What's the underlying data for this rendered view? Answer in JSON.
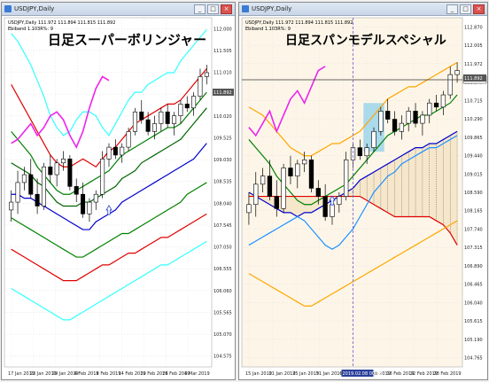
{
  "windows": [
    {
      "title": "USDJPY,Daily",
      "info1": "USDJPY,Daily  111.972 111.894 111.815 111.892",
      "info2": "Ebiband 1.103R%: 9",
      "overlay_title": "日足スーパーボリンジャー",
      "controls": {
        "minimize": "_",
        "maximize": "□",
        "close": "×"
      },
      "price_ticks": [
        "112.000",
        "111.505",
        "111.010",
        "110.515",
        "110.020",
        "109.525",
        "109.030",
        "108.535",
        "108.040",
        "107.545",
        "107.050",
        "106.555",
        "106.060",
        "105.565",
        "105.070",
        "104.575"
      ],
      "current_price": "111.892",
      "date_ticks": [
        "17 Jan 2019",
        "23 Jan 2019",
        "29 Jan 2019",
        "4 Feb 2019",
        "8 Feb 2019",
        "14 Feb 2019",
        "20 Feb 2019",
        "26 Feb 2019",
        "4 Mar 2019"
      ]
    },
    {
      "title": "USDJPY,Daily",
      "info1": "USDJPY,Daily  111.972 111.894 111.815 111.892",
      "info2": "Ebiband 1.103R%: 9",
      "overlay_title": "日足スパンモデルスペシャル",
      "controls": {
        "minimize": "_",
        "maximize": "□",
        "close": "×"
      },
      "price_ticks": [
        "112.870",
        "112.005",
        "111.972",
        "111.140",
        "110.715",
        "110.290",
        "109.865",
        "109.440",
        "109.015",
        "108.590",
        "108.165",
        "107.740",
        "107.315",
        "106.890",
        "106.465",
        "106.040",
        "105.615",
        "105.190",
        "104.765"
      ],
      "current_price": "111.892",
      "hline_price": "111.972",
      "date_ticks": [
        "15 Jan 2019",
        "21 Jan 2019",
        "25 Jan 2019",
        "31 Jan 2019",
        "6 Feb 2019",
        "12 Feb 2019",
        "18 Feb 2019",
        "22 Feb 2019",
        "28 Feb 2019"
      ],
      "cursor_date": "2019.02.08 00:00"
    }
  ],
  "chart_data": [
    {
      "type": "candlestick",
      "title": "日足スーパーボリンジャー",
      "series_colors": {
        "sma": "#006400",
        "band1": "#0000cc",
        "band2": "#008000",
        "band3": "#e00000",
        "band4": "#33ffff",
        "lagging": "#ee22ee",
        "up_candle": "#ffffff",
        "down_candle": "#000000"
      },
      "ohlc": [
        [
          108.4,
          108.9,
          108.1,
          108.6
        ],
        [
          108.6,
          109.4,
          108.3,
          109.1
        ],
        [
          109.1,
          109.5,
          108.9,
          109.3
        ],
        [
          109.3,
          109.7,
          108.7,
          108.8
        ],
        [
          108.8,
          109.2,
          108.3,
          108.5
        ],
        [
          108.5,
          109.6,
          108.4,
          109.5
        ],
        [
          109.5,
          109.8,
          109.1,
          109.3
        ],
        [
          109.3,
          109.7,
          109.0,
          109.6
        ],
        [
          109.6,
          109.9,
          109.4,
          109.7
        ],
        [
          109.7,
          109.8,
          108.9,
          109.0
        ],
        [
          109.0,
          109.2,
          108.6,
          108.8
        ],
        [
          108.8,
          109.1,
          108.2,
          108.3
        ],
        [
          108.3,
          108.7,
          108.1,
          108.6
        ],
        [
          108.6,
          108.9,
          108.4,
          108.8
        ],
        [
          108.8,
          109.9,
          108.7,
          109.7
        ],
        [
          109.7,
          110.1,
          109.5,
          110.0
        ],
        [
          110.0,
          110.2,
          109.7,
          109.8
        ],
        [
          109.8,
          110.1,
          109.6,
          110.0
        ],
        [
          110.0,
          110.5,
          109.9,
          110.4
        ],
        [
          110.4,
          111.0,
          110.3,
          110.9
        ],
        [
          110.9,
          111.2,
          110.6,
          110.7
        ],
        [
          110.7,
          110.9,
          110.3,
          110.4
        ],
        [
          110.4,
          110.8,
          110.2,
          110.6
        ],
        [
          110.6,
          111.0,
          110.4,
          110.9
        ],
        [
          110.9,
          111.1,
          110.5,
          110.6
        ],
        [
          110.6,
          110.9,
          110.3,
          110.8
        ],
        [
          110.8,
          111.2,
          110.6,
          111.1
        ],
        [
          111.1,
          111.3,
          110.9,
          111.0
        ],
        [
          111.0,
          111.4,
          110.8,
          111.3
        ],
        [
          111.3,
          112.0,
          111.2,
          111.8
        ],
        [
          111.8,
          112.1,
          111.6,
          111.9
        ]
      ],
      "lines": {
        "band4_up": [
          112.9,
          112.7,
          112.4,
          112.1,
          111.7,
          111.3,
          110.8,
          110.5,
          110.3,
          110.4,
          110.7,
          110.9,
          110.9,
          110.8,
          110.5,
          110.3,
          110.6,
          110.9,
          111.2,
          111.4,
          111.4,
          111.6,
          111.7,
          111.8,
          111.9,
          111.9,
          112.2,
          112.4,
          112.6,
          112.8,
          113.0
        ],
        "band3_up": [
          111.6,
          111.3,
          111.0,
          110.7,
          110.4,
          110.1,
          109.8,
          109.6,
          109.5,
          109.5,
          109.6,
          109.7,
          109.6,
          109.5,
          109.7,
          109.9,
          110.0,
          110.2,
          110.4,
          110.6,
          110.7,
          110.8,
          110.9,
          111.0,
          111.1,
          111.1,
          111.2,
          111.4,
          111.6,
          111.8,
          112.0
        ],
        "band2_up": [
          110.4,
          110.2,
          110.0,
          109.8,
          109.5,
          109.3,
          109.1,
          108.9,
          108.8,
          108.8,
          108.9,
          109.0,
          109.1,
          109.2,
          109.3,
          109.4,
          109.6,
          109.8,
          109.9,
          110.0,
          110.1,
          110.2,
          110.3,
          110.4,
          110.5,
          110.5,
          110.6,
          110.8,
          111.0,
          111.2,
          111.4
        ],
        "sma": [
          109.6,
          109.5,
          109.4,
          109.3,
          109.1,
          109.0,
          108.8,
          108.6,
          108.5,
          108.5,
          108.5,
          108.6,
          108.6,
          108.7,
          108.8,
          108.9,
          109.0,
          109.2,
          109.3,
          109.4,
          109.6,
          109.7,
          109.8,
          109.9,
          110.0,
          110.1,
          110.2,
          110.4,
          110.6,
          110.8,
          111.0
        ],
        "band1_dn": [
          108.8,
          108.8,
          108.7,
          108.7,
          108.6,
          108.5,
          108.4,
          108.3,
          108.2,
          108.1,
          108.0,
          107.9,
          107.9,
          108.1,
          108.2,
          108.3,
          108.4,
          108.6,
          108.7,
          108.8,
          108.9,
          109.0,
          109.1,
          109.2,
          109.3,
          109.4,
          109.5,
          109.6,
          109.7,
          109.9,
          110.1
        ],
        "band2_dn": [
          108.2,
          108.1,
          108.0,
          107.9,
          107.8,
          107.7,
          107.6,
          107.5,
          107.4,
          107.3,
          107.2,
          107.2,
          107.3,
          107.4,
          107.5,
          107.6,
          107.7,
          107.8,
          107.8,
          107.9,
          108.0,
          108.1,
          108.2,
          108.3,
          108.4,
          108.5,
          108.6,
          108.8,
          108.9,
          109.0,
          109.1
        ],
        "band3_dn": [
          107.4,
          107.3,
          107.2,
          107.1,
          107.0,
          106.9,
          106.8,
          106.7,
          106.6,
          106.6,
          106.6,
          106.7,
          106.8,
          106.9,
          107.0,
          107.0,
          107.1,
          107.2,
          107.3,
          107.3,
          107.4,
          107.5,
          107.6,
          107.7,
          107.7,
          107.8,
          107.9,
          108.0,
          108.1,
          108.2,
          108.3
        ],
        "band4_dn": [
          106.4,
          106.3,
          106.2,
          106.1,
          106.0,
          105.9,
          105.8,
          105.7,
          105.6,
          105.6,
          105.7,
          105.8,
          105.9,
          106.0,
          106.1,
          106.2,
          106.3,
          106.4,
          106.5,
          106.6,
          106.7,
          106.8,
          106.9,
          107.0,
          107.0,
          107.1,
          107.2,
          107.3,
          107.4,
          107.5,
          107.6
        ]
      },
      "lagging_span": [
        [
          0,
          110.1
        ],
        [
          1,
          110.2
        ],
        [
          2,
          110.4
        ],
        [
          3,
          110.6
        ],
        [
          4,
          110.3
        ],
        [
          5,
          110.5
        ],
        [
          6,
          110.8
        ],
        [
          7,
          110.9
        ],
        [
          8,
          110.7
        ],
        [
          9,
          110.3
        ],
        [
          10,
          110.0
        ],
        [
          11,
          110.4
        ],
        [
          12,
          111.0
        ],
        [
          13,
          111.5
        ],
        [
          14,
          111.8
        ],
        [
          15,
          111.7
        ]
      ],
      "arrow": {
        "index": 15,
        "price": 108.4
      }
    },
    {
      "type": "candlestick",
      "title": "日足スパンモデルスペシャル",
      "series_colors": {
        "span_a": "#0000cc",
        "span_b": "#e00000",
        "upper_band": "#ffa500",
        "middle_green": "#008000",
        "lagging": "#ee22ee",
        "blue_line": "#1e90ff",
        "cloud": "#f5e6c8",
        "box": "#87ceeb"
      },
      "ohlc": [
        [
          108.4,
          108.9,
          108.1,
          108.6
        ],
        [
          108.6,
          109.4,
          108.3,
          109.1
        ],
        [
          109.1,
          109.5,
          108.9,
          109.3
        ],
        [
          109.3,
          109.7,
          108.7,
          108.8
        ],
        [
          108.8,
          109.2,
          108.3,
          108.5
        ],
        [
          108.5,
          109.6,
          108.4,
          109.5
        ],
        [
          109.5,
          109.8,
          109.1,
          109.3
        ],
        [
          109.3,
          109.7,
          109.0,
          109.6
        ],
        [
          109.6,
          109.9,
          109.4,
          109.7
        ],
        [
          109.7,
          109.8,
          108.9,
          109.0
        ],
        [
          109.0,
          109.2,
          108.6,
          108.8
        ],
        [
          108.8,
          109.1,
          108.2,
          108.3
        ],
        [
          108.3,
          108.7,
          108.1,
          108.6
        ],
        [
          108.6,
          108.9,
          108.4,
          108.8
        ],
        [
          108.8,
          109.9,
          108.7,
          109.7
        ],
        [
          109.7,
          110.1,
          109.5,
          110.0
        ],
        [
          110.0,
          110.2,
          109.7,
          109.8
        ],
        [
          109.8,
          110.1,
          109.6,
          110.0
        ],
        [
          110.0,
          110.5,
          109.9,
          110.4
        ],
        [
          110.4,
          111.0,
          110.3,
          110.9
        ],
        [
          110.9,
          111.2,
          110.6,
          110.7
        ],
        [
          110.7,
          110.9,
          110.3,
          110.4
        ],
        [
          110.4,
          110.8,
          110.2,
          110.6
        ],
        [
          110.6,
          111.0,
          110.4,
          110.9
        ],
        [
          110.9,
          111.1,
          110.5,
          110.6
        ],
        [
          110.6,
          110.9,
          110.3,
          110.8
        ],
        [
          110.8,
          111.2,
          110.6,
          111.1
        ],
        [
          111.1,
          111.3,
          110.9,
          111.0
        ],
        [
          111.0,
          111.4,
          110.8,
          111.3
        ],
        [
          111.3,
          112.0,
          111.2,
          111.8
        ],
        [
          111.8,
          112.1,
          111.6,
          111.9
        ]
      ],
      "lines": {
        "upper_band": [
          111.0,
          110.9,
          110.8,
          110.6,
          110.4,
          110.2,
          110.0,
          109.9,
          109.8,
          109.8,
          109.9,
          110.0,
          110.1,
          110.1,
          110.2,
          110.3,
          110.4,
          110.6,
          110.8,
          111.0,
          111.2,
          111.3,
          111.4,
          111.5,
          111.5,
          111.6,
          111.7,
          111.8,
          111.9,
          112.0,
          112.1
        ],
        "middle_green": [
          110.2,
          110.0,
          109.8,
          109.6,
          109.3,
          109.1,
          108.9,
          108.7,
          108.6,
          108.6,
          108.7,
          108.8,
          108.9,
          109.0,
          109.1,
          109.3,
          109.5,
          109.7,
          109.9,
          110.1,
          110.3,
          110.4,
          110.5,
          110.6,
          110.7,
          110.8,
          110.8,
          110.9,
          111.0,
          111.1,
          111.3
        ],
        "span_a": [
          108.9,
          108.8,
          108.7,
          108.6,
          108.5,
          108.4,
          108.4,
          108.3,
          108.4,
          108.4,
          108.5,
          108.6,
          108.7,
          108.8,
          108.9,
          109.0,
          109.2,
          109.3,
          109.4,
          109.5,
          109.6,
          109.7,
          109.8,
          109.9,
          110.0,
          110.0,
          110.1,
          110.1,
          110.2,
          110.3,
          110.4
        ],
        "span_b": [
          108.8,
          108.8,
          108.8,
          108.8,
          108.8,
          108.8,
          108.8,
          108.8,
          108.8,
          108.8,
          108.8,
          108.8,
          108.8,
          108.8,
          108.8,
          108.8,
          108.8,
          108.7,
          108.6,
          108.5,
          108.4,
          108.3,
          108.3,
          108.3,
          108.3,
          108.3,
          108.3,
          108.2,
          108.1,
          107.9,
          107.6
        ],
        "blue_line": [
          107.6,
          107.7,
          107.8,
          107.9,
          108.0,
          108.1,
          108.2,
          108.3,
          108.2,
          108.0,
          107.8,
          107.6,
          107.5,
          107.6,
          107.8,
          108.0,
          108.3,
          108.6,
          108.9,
          109.1,
          109.3,
          109.4,
          109.6,
          109.7,
          109.8,
          109.9,
          110.0,
          110.0,
          110.1,
          110.2,
          110.3
        ],
        "lower_band": [
          106.9,
          106.8,
          106.7,
          106.6,
          106.5,
          106.4,
          106.3,
          106.2,
          106.1,
          106.1,
          106.2,
          106.3,
          106.4,
          106.5,
          106.6,
          106.7,
          106.8,
          106.9,
          107.0,
          107.1,
          107.2,
          107.3,
          107.4,
          107.5,
          107.6,
          107.7,
          107.8,
          107.9,
          108.0,
          108.1,
          108.2
        ]
      },
      "lagging_span": [
        [
          0,
          110.5
        ],
        [
          1,
          110.3
        ],
        [
          2,
          110.6
        ],
        [
          3,
          110.9
        ],
        [
          4,
          110.4
        ],
        [
          5,
          110.8
        ],
        [
          6,
          111.2
        ],
        [
          7,
          111.4
        ],
        [
          8,
          111.1
        ],
        [
          9,
          111.5
        ],
        [
          10,
          111.9
        ],
        [
          11,
          112.0
        ]
      ],
      "box": {
        "from": 17,
        "to": 19,
        "low": 109.9,
        "high": 111.1
      },
      "cursor_index": 15,
      "arrow": {
        "index": 12,
        "price": 108.7
      }
    }
  ]
}
